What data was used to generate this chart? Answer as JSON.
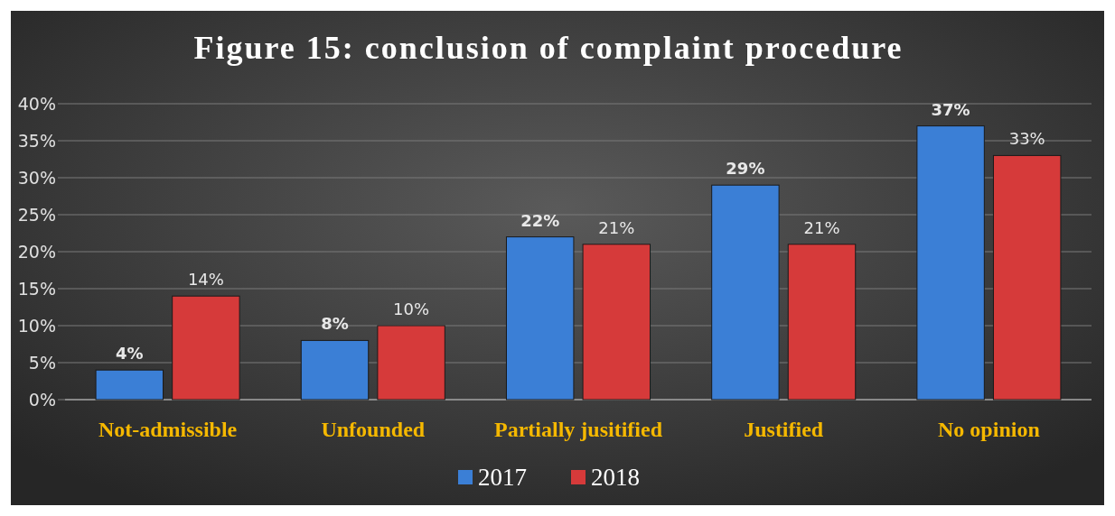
{
  "chart_data": {
    "type": "bar",
    "title": "Figure 15: conclusion of complaint procedure",
    "categories": [
      "Not-admissible",
      "Unfounded",
      "Partially jusitified",
      "Justified",
      "No opinion"
    ],
    "series": [
      {
        "name": "2017",
        "color": "#3b7fd6",
        "values": [
          4,
          8,
          22,
          29,
          37
        ],
        "value_labels": [
          "4%",
          "8%",
          "22%",
          "29%",
          "37%"
        ]
      },
      {
        "name": "2018",
        "color": "#d63a3a",
        "values": [
          14,
          10,
          21,
          21,
          33
        ],
        "value_labels": [
          "14%",
          "10%",
          "21%",
          "21%",
          "33%"
        ]
      }
    ],
    "ylim": [
      0,
      40
    ],
    "yticks": [
      {
        "value": 0,
        "label": "0%"
      },
      {
        "value": 5,
        "label": "5%"
      },
      {
        "value": 10,
        "label": "10%"
      },
      {
        "value": 15,
        "label": "15%"
      },
      {
        "value": 20,
        "label": "20%"
      },
      {
        "value": 25,
        "label": "25%"
      },
      {
        "value": 30,
        "label": "30%"
      },
      {
        "value": 35,
        "label": "35%"
      },
      {
        "value": 40,
        "label": "40%"
      }
    ],
    "grid": "y",
    "legend": "bottom"
  }
}
